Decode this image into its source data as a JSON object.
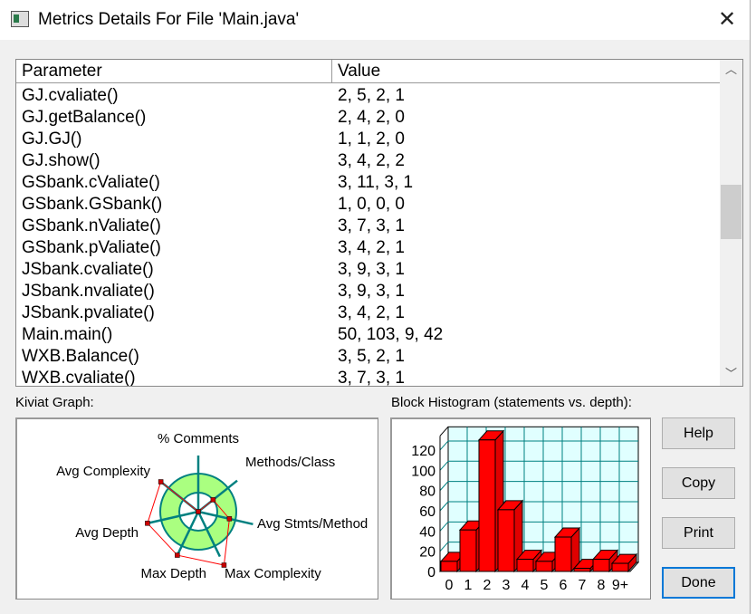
{
  "window": {
    "title": "Metrics Details For File 'Main.java'",
    "close_icon": "close-icon"
  },
  "table": {
    "columns": [
      "Parameter",
      "Value"
    ],
    "rows": [
      [
        "GJ.cvaliate()",
        "2, 5, 2, 1"
      ],
      [
        "GJ.getBalance()",
        "2, 4, 2, 0"
      ],
      [
        "GJ.GJ()",
        "1, 1, 2, 0"
      ],
      [
        "GJ.show()",
        "3, 4, 2, 2"
      ],
      [
        "GSbank.cValiate()",
        "3, 11, 3, 1"
      ],
      [
        "GSbank.GSbank()",
        "1, 0, 0, 0"
      ],
      [
        "GSbank.nValiate()",
        "3, 7, 3, 1"
      ],
      [
        "GSbank.pValiate()",
        "3, 4, 2, 1"
      ],
      [
        "JSbank.cvaliate()",
        "3, 9, 3, 1"
      ],
      [
        "JSbank.nvaliate()",
        "3, 9, 3, 1"
      ],
      [
        "JSbank.pvaliate()",
        "3, 4, 2, 1"
      ],
      [
        "Main.main()",
        "50, 103, 9, 42"
      ],
      [
        "WXB.Balance()",
        "3, 5, 2, 1"
      ],
      [
        "WXB.cvaliate()",
        "3, 7, 3, 1"
      ]
    ]
  },
  "kiviat": {
    "label": "Kiviat Graph:",
    "axes": [
      "% Comments",
      "Methods/Class",
      "Avg Stmts/Method",
      "Max Complexity",
      "Max Depth",
      "Avg Depth",
      "Avg Complexity"
    ],
    "values_relative_to_outer_ring": [
      0,
      0.5,
      0.84,
      1.56,
      1.27,
      1.37,
      1.26
    ],
    "colors": {
      "band": "#aaff80",
      "axis": "#008080",
      "polygon": "#ff0000"
    }
  },
  "histogram": {
    "label": "Block Histogram (statements vs. depth):"
  },
  "chart_data": {
    "type": "bar",
    "categories": [
      "0",
      "1",
      "2",
      "3",
      "4",
      "5",
      "6",
      "7",
      "8",
      "9+"
    ],
    "values": [
      10,
      41,
      130,
      61,
      12,
      10,
      34,
      3,
      12,
      8
    ],
    "yticks": [
      0,
      20,
      40,
      60,
      80,
      100,
      120
    ],
    "ylim": [
      0,
      134
    ],
    "grid": true,
    "bar_color": "#ff0000",
    "grid_color": "#008080"
  },
  "buttons": {
    "help": "Help",
    "copy": "Copy",
    "print": "Print",
    "done": "Done"
  }
}
